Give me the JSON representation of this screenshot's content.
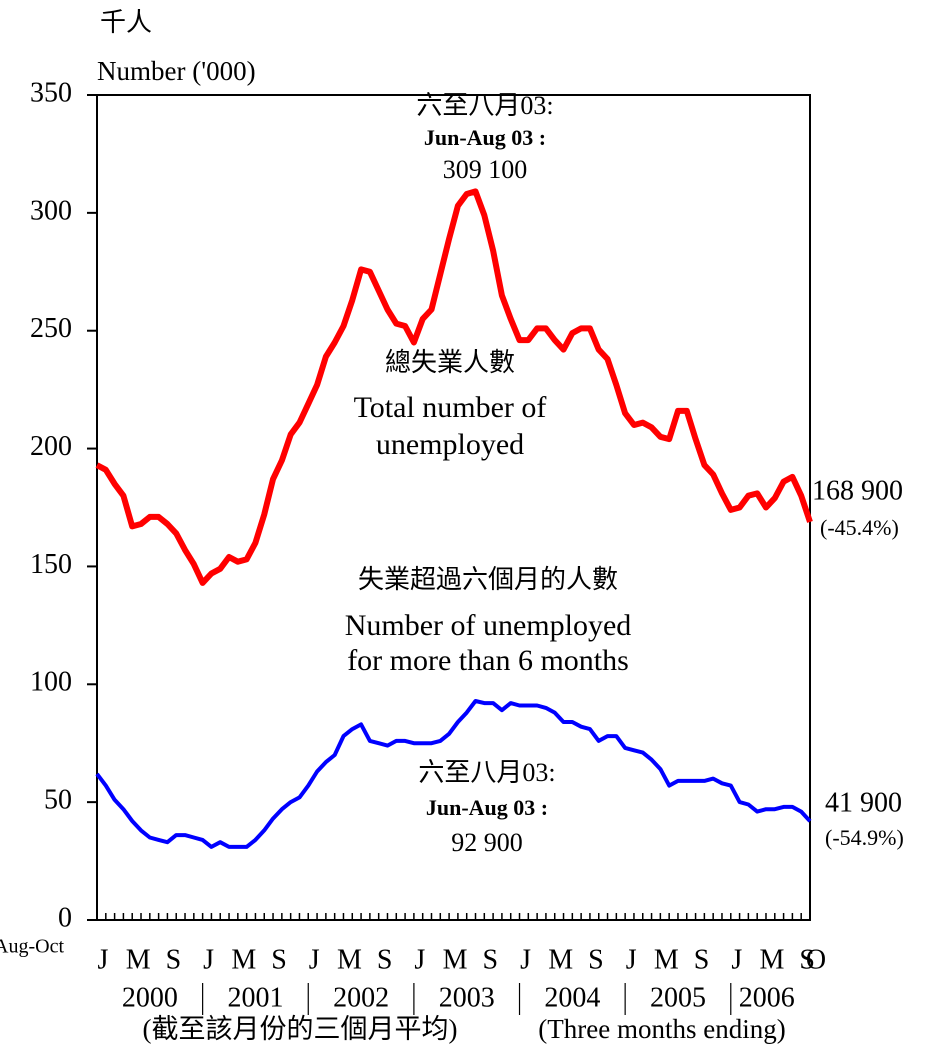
{
  "chart_data": {
    "type": "line",
    "y_unit_labels": [
      "千人",
      "Number ('000)"
    ],
    "categories": [
      "J",
      null,
      null,
      null,
      "M",
      null,
      null,
      null,
      "S",
      null,
      null,
      null,
      "J",
      null,
      null,
      null,
      "M",
      null,
      null,
      null,
      "S",
      null,
      null,
      null,
      "J",
      null,
      null,
      null,
      "M",
      null,
      null,
      null,
      "S",
      null,
      null,
      null,
      "J",
      null,
      null,
      null,
      "M",
      null,
      null,
      null,
      "S",
      null,
      null,
      null,
      "J",
      null,
      null,
      null,
      "M",
      null,
      null,
      null,
      "S",
      null,
      null,
      null,
      "J",
      null,
      null,
      null,
      "M",
      null,
      null,
      null,
      "S",
      null,
      null,
      null,
      "J",
      null,
      null,
      null,
      "M",
      null,
      null,
      null,
      "S",
      "O"
    ],
    "first_period_label": "Aug-Oct",
    "year_labels": [
      "2000",
      "2001",
      "2002",
      "2003",
      "2004",
      "2005",
      "2006"
    ],
    "x_axis_notes": [
      "(截至該月份的三個月平均)",
      "(Three months ending)"
    ],
    "ylim": [
      0,
      350
    ],
    "yticks": [
      0,
      50,
      100,
      150,
      200,
      250,
      300,
      350
    ],
    "series": [
      {
        "name": "總失業人數 Total number of unemployed",
        "color": "#ff0000",
        "values": [
          193,
          191,
          185,
          180,
          167,
          168,
          171,
          171,
          168,
          164,
          157,
          151,
          143,
          147,
          149,
          154,
          152,
          153,
          160,
          172,
          187,
          195,
          206,
          211,
          219,
          227,
          239,
          245,
          252,
          263,
          276,
          275,
          267,
          259,
          253,
          252,
          245,
          255,
          259,
          274,
          289,
          303,
          308,
          309.1,
          299,
          284,
          265,
          255,
          246,
          246,
          251,
          251,
          246,
          242,
          249,
          251,
          251,
          242,
          238,
          227,
          215,
          210,
          211,
          209,
          205,
          204,
          216,
          216,
          204,
          193,
          189,
          181,
          174,
          175,
          180,
          181,
          175,
          179,
          186,
          188,
          180,
          168.9
        ]
      },
      {
        "name": "失業超過六個月的人數 Number of unemployed for more than 6 months",
        "color": "#0000ff",
        "values": [
          62,
          57,
          51,
          47,
          42,
          38,
          35,
          34,
          33,
          36,
          36,
          35,
          34,
          31,
          33,
          31,
          31,
          31,
          34,
          38,
          43,
          47,
          50,
          52,
          57,
          63,
          67,
          70,
          78,
          81,
          83,
          76,
          75,
          74,
          76,
          76,
          75,
          75,
          75,
          76,
          79,
          84,
          88,
          92.9,
          92,
          92,
          89,
          92,
          91,
          91,
          91,
          90,
          88,
          84,
          84,
          82,
          81,
          76,
          78,
          78,
          73,
          72,
          71,
          68,
          64,
          57,
          59,
          59,
          59,
          59,
          60,
          58,
          57,
          50,
          49,
          46,
          47,
          47,
          48,
          48,
          46,
          41.9
        ]
      }
    ],
    "annotations": [
      {
        "lines": [
          "六至八月03:",
          "Jun-Aug 03 :",
          "309 100"
        ]
      },
      {
        "lines": [
          "總失業人數",
          "Total number of",
          "unemployed"
        ]
      },
      {
        "lines": [
          "失業超過六個月的人數",
          "Number of unemployed",
          "for more than 6 months"
        ]
      },
      {
        "lines": [
          "六至八月03:",
          "Jun-Aug 03 :",
          "92 900"
        ]
      },
      {
        "lines": [
          "168 900",
          "(-45.4%)"
        ]
      },
      {
        "lines": [
          "41 900",
          "(-54.9%)"
        ]
      }
    ]
  }
}
